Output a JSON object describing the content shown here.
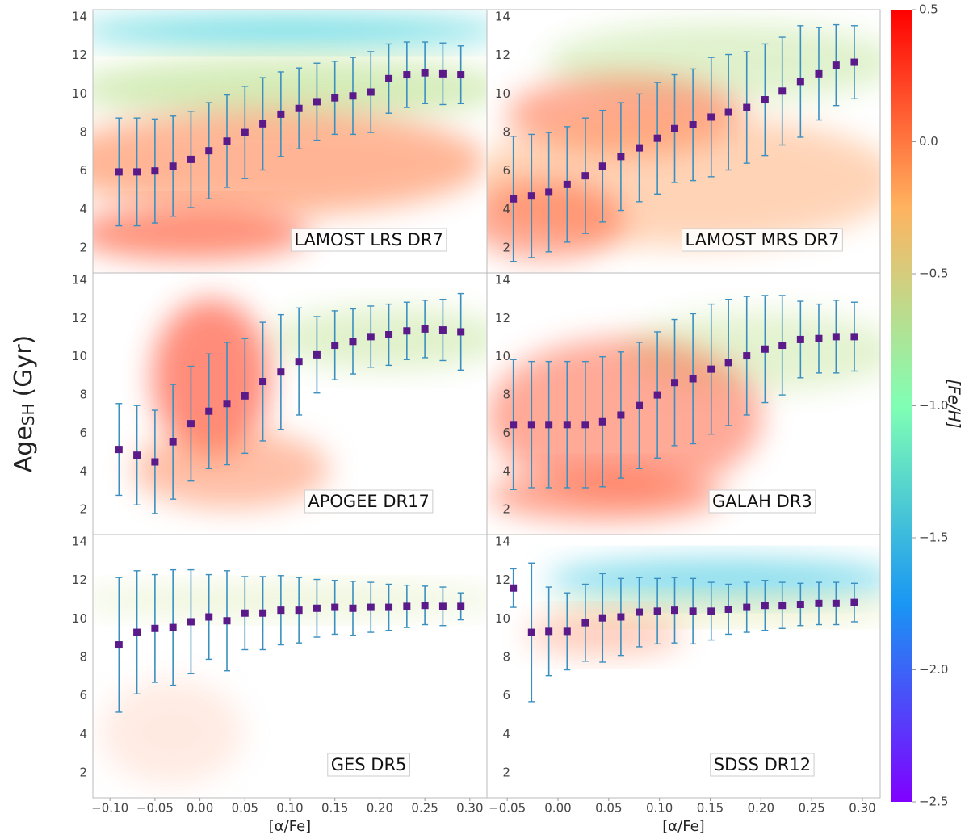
{
  "chart_data": [
    {
      "type": "errorbar",
      "title": "LAMOST LRS DR7",
      "x": [
        -0.09,
        -0.07,
        -0.05,
        -0.03,
        -0.01,
        0.01,
        0.03,
        0.05,
        0.07,
        0.09,
        0.11,
        0.13,
        0.15,
        0.17,
        0.19,
        0.21,
        0.23,
        0.25,
        0.27,
        0.29
      ],
      "values": [
        5.95,
        5.95,
        6.0,
        6.25,
        6.6,
        7.05,
        7.55,
        8.0,
        8.45,
        8.95,
        9.25,
        9.6,
        9.8,
        9.9,
        10.1,
        10.8,
        11.0,
        11.1,
        11.05,
        11.0
      ],
      "errors": [
        2.8,
        2.8,
        2.7,
        2.6,
        2.5,
        2.5,
        2.4,
        2.4,
        2.4,
        2.2,
        2.1,
        2.0,
        1.9,
        2.0,
        2.1,
        1.8,
        1.7,
        1.6,
        1.6,
        1.5
      ],
      "xlim": [
        -0.119,
        0.319
      ],
      "ylim": [
        0.7,
        14.38
      ],
      "yticks": [
        2,
        4,
        6,
        8,
        10,
        12,
        14
      ]
    },
    {
      "type": "errorbar",
      "title": "LAMOST MRS DR7",
      "x": [
        -0.044,
        -0.026,
        -0.009,
        0.009,
        0.027,
        0.044,
        0.062,
        0.08,
        0.098,
        0.115,
        0.133,
        0.151,
        0.168,
        0.186,
        0.204,
        0.221,
        0.239,
        0.257,
        0.274,
        0.292
      ],
      "values": [
        4.55,
        4.7,
        4.9,
        5.3,
        5.75,
        6.25,
        6.75,
        7.2,
        7.7,
        8.2,
        8.4,
        8.8,
        9.05,
        9.3,
        9.7,
        10.15,
        10.65,
        11.05,
        11.5,
        11.65
      ],
      "errors": [
        3.25,
        3.2,
        3.1,
        3.0,
        3.0,
        2.9,
        2.8,
        2.8,
        2.9,
        2.8,
        2.9,
        3.1,
        3.0,
        2.9,
        2.9,
        2.8,
        2.9,
        2.4,
        2.1,
        1.9
      ],
      "xlim": [
        -0.07,
        0.3175
      ],
      "ylim": [
        0.7,
        14.38
      ],
      "yticks": [
        2,
        4,
        6,
        8,
        10,
        12,
        14
      ]
    },
    {
      "type": "errorbar",
      "title": "APOGEE DR17",
      "x": [
        -0.09,
        -0.07,
        -0.05,
        -0.03,
        -0.01,
        0.01,
        0.03,
        0.05,
        0.07,
        0.09,
        0.11,
        0.13,
        0.15,
        0.17,
        0.19,
        0.21,
        0.23,
        0.25,
        0.27,
        0.29
      ],
      "values": [
        5.15,
        4.85,
        4.5,
        5.55,
        6.5,
        7.15,
        7.55,
        7.95,
        8.7,
        9.2,
        9.75,
        10.1,
        10.6,
        10.8,
        11.05,
        11.15,
        11.35,
        11.45,
        11.4,
        11.3
      ],
      "errors": [
        2.4,
        2.6,
        2.7,
        3.0,
        3.0,
        3.0,
        3.2,
        3.0,
        3.1,
        3.0,
        2.8,
        2.0,
        1.8,
        1.7,
        1.6,
        1.6,
        1.5,
        1.5,
        1.6,
        2.0
      ],
      "xlim": [
        -0.119,
        0.319
      ],
      "ylim": [
        0.7,
        14.38
      ],
      "yticks": [
        2,
        4,
        6,
        8,
        10,
        12,
        14
      ]
    },
    {
      "type": "errorbar",
      "title": "GALAH DR3",
      "x": [
        -0.044,
        -0.026,
        -0.009,
        0.009,
        0.027,
        0.044,
        0.062,
        0.08,
        0.098,
        0.115,
        0.133,
        0.151,
        0.168,
        0.186,
        0.204,
        0.221,
        0.239,
        0.257,
        0.274,
        0.292
      ],
      "values": [
        6.45,
        6.45,
        6.45,
        6.45,
        6.45,
        6.6,
        6.95,
        7.45,
        8.0,
        8.65,
        8.85,
        9.35,
        9.7,
        10.05,
        10.4,
        10.6,
        10.9,
        10.95,
        11.05,
        11.05
      ],
      "errors": [
        3.4,
        3.3,
        3.3,
        3.3,
        3.3,
        3.4,
        3.3,
        3.3,
        3.3,
        3.3,
        3.4,
        3.4,
        3.3,
        3.1,
        2.8,
        2.6,
        2.0,
        1.8,
        1.9,
        1.8
      ],
      "xlim": [
        -0.07,
        0.3175
      ],
      "ylim": [
        0.7,
        14.38
      ],
      "yticks": [
        2,
        4,
        6,
        8,
        10,
        12,
        14
      ]
    },
    {
      "type": "errorbar",
      "title": "GES DR5",
      "xlabel": "[α/Fe]",
      "x": [
        -0.09,
        -0.07,
        -0.05,
        -0.03,
        -0.01,
        0.01,
        0.03,
        0.05,
        0.07,
        0.09,
        0.11,
        0.13,
        0.15,
        0.17,
        0.19,
        0.21,
        0.23,
        0.25,
        0.27,
        0.29
      ],
      "values": [
        8.65,
        9.3,
        9.5,
        9.55,
        9.85,
        10.1,
        9.9,
        10.3,
        10.3,
        10.45,
        10.45,
        10.55,
        10.6,
        10.55,
        10.6,
        10.6,
        10.65,
        10.7,
        10.65,
        10.65
      ],
      "errors": [
        3.5,
        3.2,
        2.8,
        3.0,
        2.7,
        2.2,
        2.6,
        1.9,
        1.9,
        1.8,
        1.7,
        1.5,
        1.4,
        1.4,
        1.3,
        1.2,
        1.1,
        1.0,
        1.0,
        0.7
      ],
      "xlim": [
        -0.119,
        0.319
      ],
      "ylim": [
        0.7,
        14.38
      ],
      "yticks": [
        2,
        4,
        6,
        8,
        10,
        12,
        14
      ],
      "xticks": [
        {
          "value": -0.1,
          "label": "−0.10"
        },
        {
          "value": -0.05,
          "label": "−0.05"
        },
        {
          "value": 0,
          "label": "0.00"
        },
        {
          "value": 0.05,
          "label": "0.05"
        },
        {
          "value": 0.1,
          "label": "0.10"
        },
        {
          "value": 0.15,
          "label": "0.15"
        },
        {
          "value": 0.2,
          "label": "0.20"
        },
        {
          "value": 0.25,
          "label": "0.25"
        },
        {
          "value": 0.3,
          "label": "0.30"
        }
      ]
    },
    {
      "type": "errorbar",
      "title": "SDSS DR12",
      "xlabel": "[α/Fe]",
      "x": [
        -0.044,
        -0.026,
        -0.009,
        0.009,
        0.027,
        0.044,
        0.062,
        0.08,
        0.098,
        0.115,
        0.133,
        0.151,
        0.168,
        0.186,
        0.204,
        0.221,
        0.239,
        0.257,
        0.274,
        0.292
      ],
      "values": [
        11.6,
        9.3,
        9.35,
        9.35,
        9.8,
        10.05,
        10.1,
        10.35,
        10.4,
        10.45,
        10.4,
        10.4,
        10.5,
        10.6,
        10.7,
        10.7,
        10.75,
        10.8,
        10.8,
        10.85
      ],
      "errors": [
        1.0,
        3.6,
        2.3,
        2.0,
        2.0,
        2.3,
        2.0,
        1.8,
        1.7,
        1.7,
        1.7,
        1.5,
        1.3,
        1.3,
        1.3,
        1.2,
        1.1,
        1.1,
        1.1,
        1.0
      ],
      "xlim": [
        -0.07,
        0.3175
      ],
      "ylim": [
        0.7,
        14.38
      ],
      "yticks": [
        2,
        4,
        6,
        8,
        10,
        12,
        14
      ],
      "xticks": [
        {
          "value": -0.05,
          "label": "−0.05"
        },
        {
          "value": 0,
          "label": "0.00"
        },
        {
          "value": 0.05,
          "label": "0.05"
        },
        {
          "value": 0.1,
          "label": "0.10"
        },
        {
          "value": 0.15,
          "label": "0.15"
        },
        {
          "value": 0.2,
          "label": "0.20"
        },
        {
          "value": 0.25,
          "label": "0.25"
        },
        {
          "value": 0.3,
          "label": "0.30"
        }
      ]
    }
  ],
  "ylabel": {
    "text": "Age",
    "sub": "SH",
    "unit": "(Gyr)"
  },
  "colorbar": {
    "label": "[Fe/H]",
    "colormap": "rainbow",
    "lim": [
      -2.5,
      0.5
    ],
    "ticks": [
      0.5,
      {
        "value": 0,
        "label": "0.0"
      },
      {
        "value": -0.5,
        "label": "−0.5"
      },
      {
        "value": -1,
        "label": "−1.0"
      },
      {
        "value": -1.5,
        "label": "−1.5"
      },
      {
        "value": -2,
        "label": "−2.0"
      },
      {
        "value": -2.5,
        "label": "−2.5"
      }
    ]
  }
}
